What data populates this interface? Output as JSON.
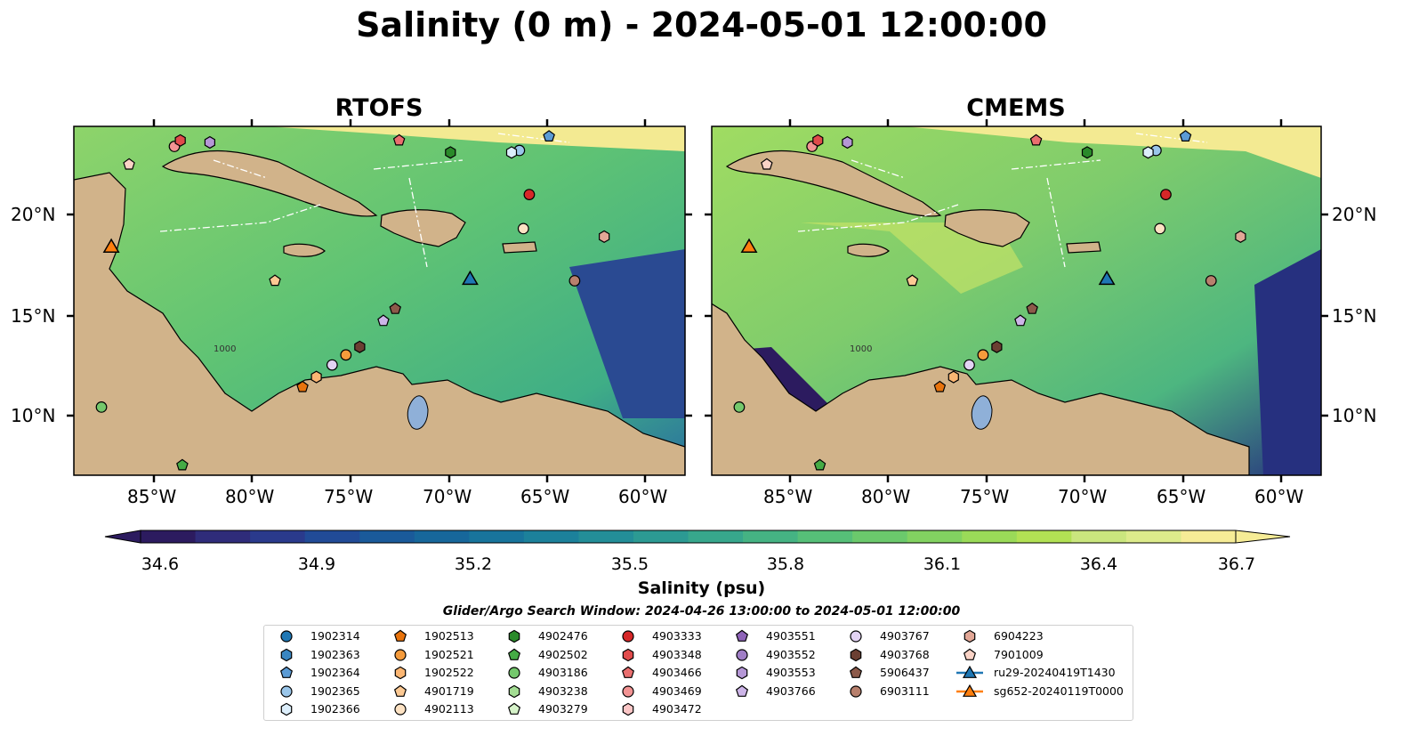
{
  "title": "Salinity (0 m) - 2024-05-01 12:00:00",
  "panels": [
    {
      "title": "RTOFS"
    },
    {
      "title": "CMEMS"
    }
  ],
  "axes": {
    "lon_ticks": [
      "85°W",
      "80°W",
      "75°W",
      "70°W",
      "65°W",
      "60°W"
    ],
    "lat_ticks": [
      "20°N",
      "15°N",
      "10°N"
    ],
    "contour_label": "1000"
  },
  "colorbar": {
    "label": "Salinity (psu)",
    "ticks": [
      "34.6",
      "34.9",
      "35.2",
      "35.5",
      "35.8",
      "36.1",
      "36.4",
      "36.7"
    ],
    "colors": [
      "#2c1b5f",
      "#2f2c7a",
      "#2a3a8c",
      "#214b97",
      "#1a5a9a",
      "#17679b",
      "#18749c",
      "#1c819b",
      "#238e98",
      "#2c9a93",
      "#37a78c",
      "#45b383",
      "#56bf78",
      "#6bc96c",
      "#82d261",
      "#9ada58",
      "#b2e154",
      "#cae67e",
      "#ddeb8b",
      "#f6ec96"
    ]
  },
  "search_window": "Glider/Argo Search Window: 2024-04-26 13:00:00 to 2024-05-01 12:00:00",
  "legend": [
    {
      "label": "1902314",
      "marker": "circle",
      "color": "#1f77b4"
    },
    {
      "label": "1902363",
      "marker": "hexagon",
      "color": "#3a86c1"
    },
    {
      "label": "1902364",
      "marker": "pentagon",
      "color": "#5b9bd5"
    },
    {
      "label": "1902365",
      "marker": "circle",
      "color": "#9ac6ea"
    },
    {
      "label": "1902366",
      "marker": "hexagon",
      "color": "#dceefb"
    },
    {
      "label": "1902513",
      "marker": "pentagon",
      "color": "#e8730c"
    },
    {
      "label": "1902521",
      "marker": "circle",
      "color": "#f59b3c"
    },
    {
      "label": "1902522",
      "marker": "hexagon",
      "color": "#fbb673"
    },
    {
      "label": "4901719",
      "marker": "pentagon",
      "color": "#fcc993"
    },
    {
      "label": "4902113",
      "marker": "circle",
      "color": "#fde2c3"
    },
    {
      "label": "4902476",
      "marker": "hexagon",
      "color": "#2a8a2a"
    },
    {
      "label": "4902502",
      "marker": "pentagon",
      "color": "#45ab45"
    },
    {
      "label": "4903186",
      "marker": "circle",
      "color": "#74c86c"
    },
    {
      "label": "4903238",
      "marker": "hexagon",
      "color": "#a3dd93"
    },
    {
      "label": "4903279",
      "marker": "pentagon",
      "color": "#d6f3c9"
    },
    {
      "label": "4903333",
      "marker": "circle",
      "color": "#d62728"
    },
    {
      "label": "4903348",
      "marker": "hexagon",
      "color": "#e04b4b"
    },
    {
      "label": "4903466",
      "marker": "pentagon",
      "color": "#ea6f6f"
    },
    {
      "label": "4903469",
      "marker": "circle",
      "color": "#f29393"
    },
    {
      "label": "4903472",
      "marker": "hexagon",
      "color": "#fbc6c6"
    },
    {
      "label": "4903551",
      "marker": "pentagon",
      "color": "#8e63b8"
    },
    {
      "label": "4903552",
      "marker": "circle",
      "color": "#a07ec6"
    },
    {
      "label": "4903553",
      "marker": "hexagon",
      "color": "#b597d6"
    },
    {
      "label": "4903766",
      "marker": "pentagon",
      "color": "#cdb5e8"
    },
    {
      "label": "4903767",
      "marker": "circle",
      "color": "#e3d3f4"
    },
    {
      "label": "4903768",
      "marker": "hexagon",
      "color": "#6b3f32"
    },
    {
      "label": "5906437",
      "marker": "pentagon",
      "color": "#8c5a4a"
    },
    {
      "label": "6903111",
      "marker": "circle",
      "color": "#b8806d"
    },
    {
      "label": "6904223",
      "marker": "hexagon",
      "color": "#e2a796"
    },
    {
      "label": "7901009",
      "marker": "pentagon",
      "color": "#fad3c6"
    },
    {
      "label": "ru29-20240419T1430",
      "marker": "triangle",
      "color": "#1f77b4"
    },
    {
      "label": "sg652-20240119T0000",
      "marker": "triangle",
      "color": "#ff7f0e"
    }
  ],
  "map_markers": [
    {
      "id": "1902364",
      "lon": -65.0,
      "lat": 23.9
    },
    {
      "id": "1902365",
      "lon": -66.5,
      "lat": 23.2
    },
    {
      "id": "1902366",
      "lon": -66.9,
      "lat": 23.1
    },
    {
      "id": "4902476",
      "lon": -70.0,
      "lat": 23.1
    },
    {
      "id": "4903466",
      "lon": -72.6,
      "lat": 23.7
    },
    {
      "id": "4903333",
      "lon": -66.0,
      "lat": 21.0
    },
    {
      "id": "4902113",
      "lon": -66.3,
      "lat": 19.3
    },
    {
      "id": "6904223",
      "lon": -62.2,
      "lat": 18.9
    },
    {
      "id": "6903111",
      "lon": -63.7,
      "lat": 16.7
    },
    {
      "id": "4901719",
      "lon": -78.9,
      "lat": 16.7
    },
    {
      "id": "5906437",
      "lon": -72.8,
      "lat": 15.3
    },
    {
      "id": "4903766",
      "lon": -73.4,
      "lat": 14.7
    },
    {
      "id": "4903768",
      "lon": -74.6,
      "lat": 13.4
    },
    {
      "id": "1902521",
      "lon": -75.3,
      "lat": 13.0
    },
    {
      "id": "4903767",
      "lon": -76.0,
      "lat": 12.5
    },
    {
      "id": "1902522",
      "lon": -76.8,
      "lat": 11.9
    },
    {
      "id": "1902513",
      "lon": -77.5,
      "lat": 11.4
    },
    {
      "id": "4903553",
      "lon": -82.2,
      "lat": 23.6
    },
    {
      "id": "4903469",
      "lon": -84.0,
      "lat": 23.4
    },
    {
      "id": "4903348",
      "lon": -83.7,
      "lat": 23.7
    },
    {
      "id": "7901009",
      "lon": -86.3,
      "lat": 22.5
    },
    {
      "id": "4903186",
      "lon": -87.7,
      "lat": 10.4
    },
    {
      "id": "4902502",
      "lon": -83.6,
      "lat": 7.5
    },
    {
      "id": "sg652-20240119T0000",
      "lon": -87.2,
      "lat": 18.4
    },
    {
      "id": "ru29-20240419T1430",
      "lon": -69.0,
      "lat": 16.8
    }
  ]
}
